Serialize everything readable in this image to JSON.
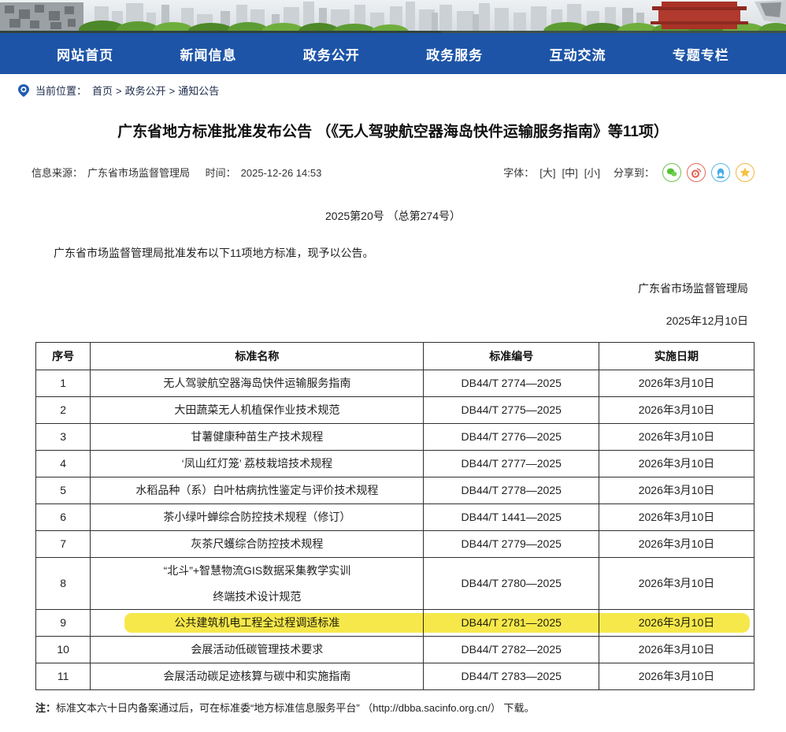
{
  "nav": {
    "items": [
      {
        "label": "网站首页"
      },
      {
        "label": "新闻信息"
      },
      {
        "label": "政务公开"
      },
      {
        "label": "政务服务"
      },
      {
        "label": "互动交流"
      },
      {
        "label": "专题专栏"
      }
    ]
  },
  "breadcrumb": {
    "label": "当前位置：",
    "items": [
      "首页",
      "政务公开",
      "通知公告"
    ],
    "separator": ">"
  },
  "article": {
    "title": "广东省地方标准批准发布公告 （《无人驾驶航空器海岛快件运输服务指南》等11项）",
    "meta": {
      "source_label": "信息来源：",
      "source": "广东省市场监督管理局",
      "time_label": "时间：",
      "time": "2025-12-26 14:53",
      "font_label": "字体：",
      "font_sizes": [
        "[大]",
        "[中]",
        "[小]"
      ],
      "share_label": "分享到：",
      "share_icons": [
        "wechat-icon",
        "weibo-icon",
        "qq-icon",
        "favorite-star-icon"
      ]
    },
    "doc_number": "2025第20号 （总第274号）",
    "body_paragraph": "广东省市场监督管理局批准发布以下11项地方标准，现予以公告。",
    "signature": {
      "org": "广东省市场监督管理局",
      "date": "2025年12月10日"
    },
    "note_label": "注：",
    "note_text": "标准文本六十日内备案通过后，可在标准委“地方标准信息服务平台” （http://dbba.sacinfo.org.cn/） 下载。"
  },
  "table": {
    "headers": [
      "序号",
      "标准名称",
      "标准编号",
      "实施日期"
    ],
    "rows": [
      {
        "no": "1",
        "name": "无人驾驶航空器海岛快件运输服务指南",
        "code": "DB44/T 2774—2025",
        "date": "2026年3月10日",
        "highlighted": false
      },
      {
        "no": "2",
        "name": "大田蔬菜无人机植保作业技术规范",
        "code": "DB44/T 2775—2025",
        "date": "2026年3月10日",
        "highlighted": false
      },
      {
        "no": "3",
        "name": "甘薯健康种苗生产技术规程",
        "code": "DB44/T 2776—2025",
        "date": "2026年3月10日",
        "highlighted": false
      },
      {
        "no": "4",
        "name": "‘凤山红灯笼’ 荔枝栽培技术规程",
        "code": "DB44/T 2777—2025",
        "date": "2026年3月10日",
        "highlighted": false
      },
      {
        "no": "5",
        "name": "水稻品种（系）白叶枯病抗性鉴定与评价技术规程",
        "code": "DB44/T 2778—2025",
        "date": "2026年3月10日",
        "highlighted": false
      },
      {
        "no": "6",
        "name": "茶小绿叶蝉综合防控技术规程（修订）",
        "code": "DB44/T 1441—2025",
        "date": "2026年3月10日",
        "highlighted": false
      },
      {
        "no": "7",
        "name": "灰茶尺蠖综合防控技术规程",
        "code": "DB44/T 2779—2025",
        "date": "2026年3月10日",
        "highlighted": false
      },
      {
        "no": "8",
        "name": "“北斗”+智慧物流GIS数据采集教学实训",
        "name2": "终端技术设计规范",
        "code": "DB44/T 2780—2025",
        "date": "2026年3月10日",
        "highlighted": false
      },
      {
        "no": "9",
        "name": "公共建筑机电工程全过程调适标准",
        "code": "DB44/T 2781—2025",
        "date": "2026年3月10日",
        "highlighted": true
      },
      {
        "no": "10",
        "name": "会展活动低碳管理技术要求",
        "code": "DB44/T 2782—2025",
        "date": "2026年3月10日",
        "highlighted": false
      },
      {
        "no": "11",
        "name": "会展活动碳足迹核算与碳中和实施指南",
        "code": "DB44/T 2783—2025",
        "date": "2026年3月10日",
        "highlighted": false
      }
    ]
  },
  "colors": {
    "nav_blue": "#1d54a7",
    "highlight_yellow": "#f6e84b",
    "wechat_green": "#52c332",
    "weibo_red": "#e4695c",
    "qq_blue": "#45aee8",
    "star_orange": "#f5c242"
  }
}
